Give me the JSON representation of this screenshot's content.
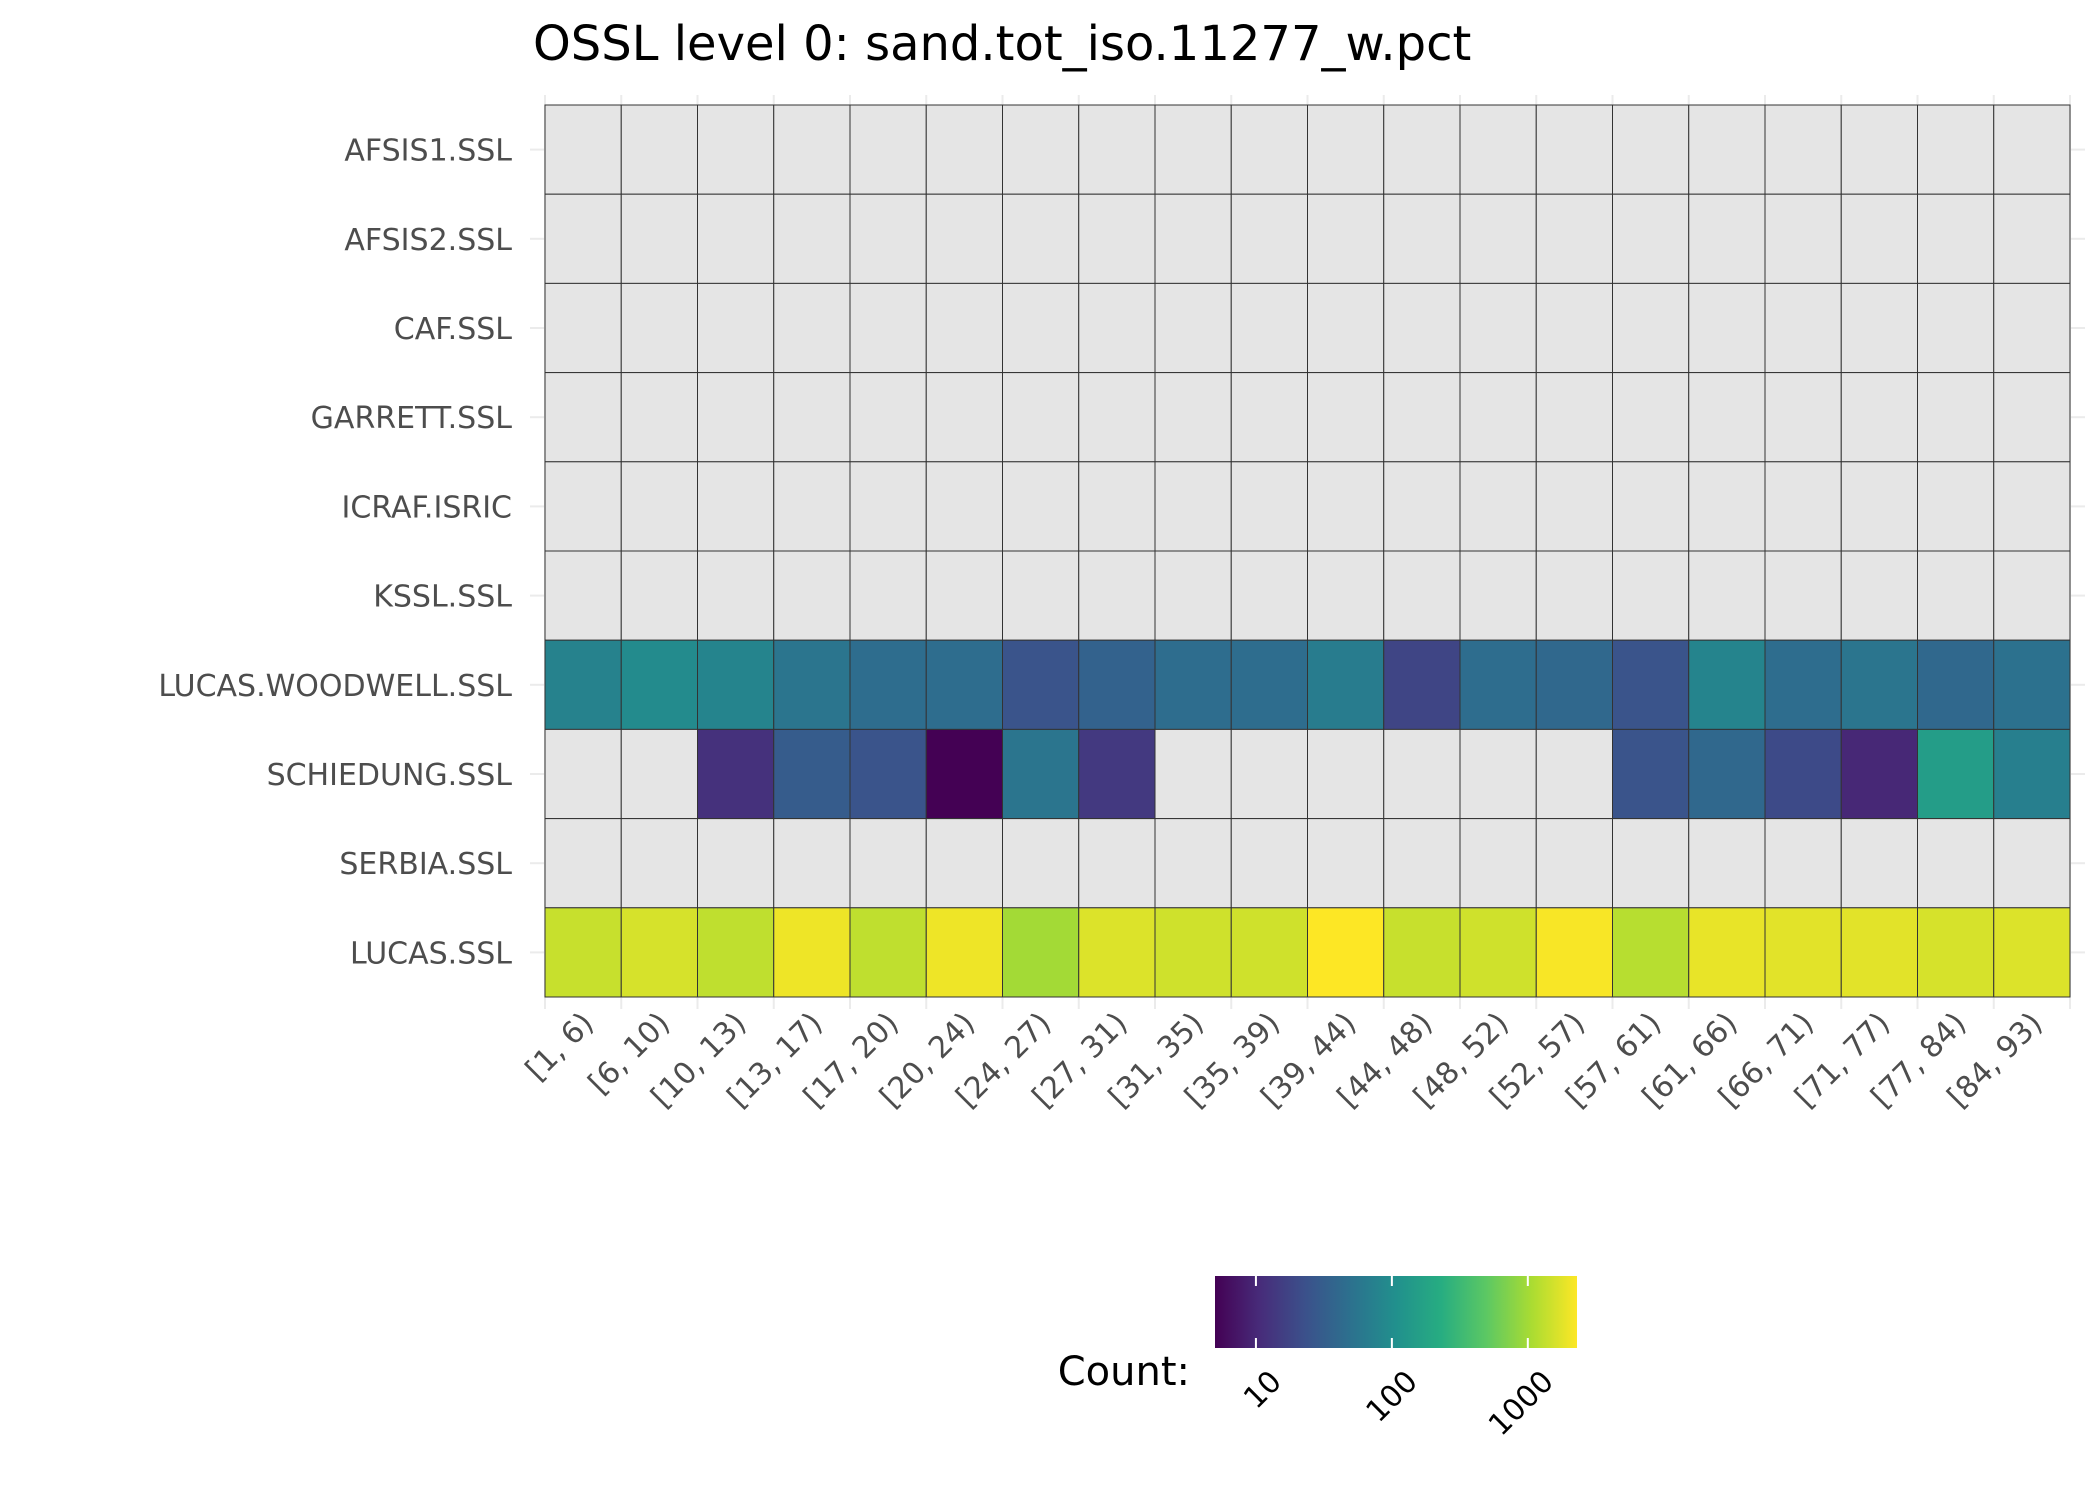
{
  "chart_data": {
    "type": "heatmap",
    "title": "OSSL level 0: sand.tot_iso.11277_w.pct",
    "xlabel": "",
    "ylabel": "",
    "x_categories": [
      "[1, 6)",
      "[6, 10)",
      "[10, 13)",
      "[13, 17)",
      "[17, 20)",
      "[20, 24)",
      "[24, 27)",
      "[27, 31)",
      "[31, 35)",
      "[35, 39)",
      "[39, 44)",
      "[44, 48)",
      "[48, 52)",
      "[52, 57)",
      "[57, 61)",
      "[61, 66)",
      "[66, 71)",
      "[71, 77)",
      "[77, 84)",
      "[84, 93)"
    ],
    "y_categories": [
      "AFSIS1.SSL",
      "AFSIS2.SSL",
      "CAF.SSL",
      "GARRETT.SSL",
      "ICRAF.ISRIC",
      "KSSL.SSL",
      "LUCAS.WOODWELL.SSL",
      "SCHIEDUNG.SSL",
      "SERBIA.SSL",
      "LUCAS.SSL"
    ],
    "values": [
      [
        null,
        null,
        null,
        null,
        null,
        null,
        null,
        null,
        null,
        null,
        null,
        null,
        null,
        null,
        null,
        null,
        null,
        null,
        null,
        null
      ],
      [
        null,
        null,
        null,
        null,
        null,
        null,
        null,
        null,
        null,
        null,
        null,
        null,
        null,
        null,
        null,
        null,
        null,
        null,
        null,
        null
      ],
      [
        null,
        null,
        null,
        null,
        null,
        null,
        null,
        null,
        null,
        null,
        null,
        null,
        null,
        null,
        null,
        null,
        null,
        null,
        null,
        null
      ],
      [
        null,
        null,
        null,
        null,
        null,
        null,
        null,
        null,
        null,
        null,
        null,
        null,
        null,
        null,
        null,
        null,
        null,
        null,
        null,
        null
      ],
      [
        null,
        null,
        null,
        null,
        null,
        null,
        null,
        null,
        null,
        null,
        null,
        null,
        null,
        null,
        null,
        null,
        null,
        null,
        null,
        null
      ],
      [
        null,
        null,
        null,
        null,
        null,
        null,
        null,
        null,
        null,
        null,
        null,
        null,
        null,
        null,
        null,
        null,
        null,
        null,
        null,
        null
      ],
      [
        75,
        95,
        80,
        55,
        45,
        45,
        25,
        35,
        45,
        45,
        65,
        18,
        45,
        40,
        25,
        80,
        45,
        55,
        40,
        50
      ],
      [
        null,
        null,
        12,
        30,
        25,
        5,
        55,
        14,
        null,
        null,
        null,
        null,
        null,
        null,
        25,
        40,
        20,
        10,
        150,
        70
      ],
      [
        null,
        null,
        null,
        null,
        null,
        null,
        null,
        null,
        null,
        null,
        null,
        null,
        null,
        null,
        null,
        null,
        null,
        null,
        null,
        null
      ],
      [
        1400,
        1600,
        1300,
        2000,
        1300,
        2000,
        1000,
        1700,
        1500,
        1500,
        2300,
        1400,
        1500,
        2200,
        1200,
        1900,
        1800,
        1800,
        1600,
        1700
      ]
    ],
    "colorbar": {
      "title": "Count:",
      "scale": "log10",
      "palette": "viridis",
      "domain": [
        5,
        2300
      ],
      "ticks": [
        10,
        100,
        1000
      ],
      "tick_labels": [
        "10",
        "100",
        "1000"
      ],
      "na_color": "#e5e5e5"
    },
    "legend_position": "bottom",
    "grid": true
  }
}
